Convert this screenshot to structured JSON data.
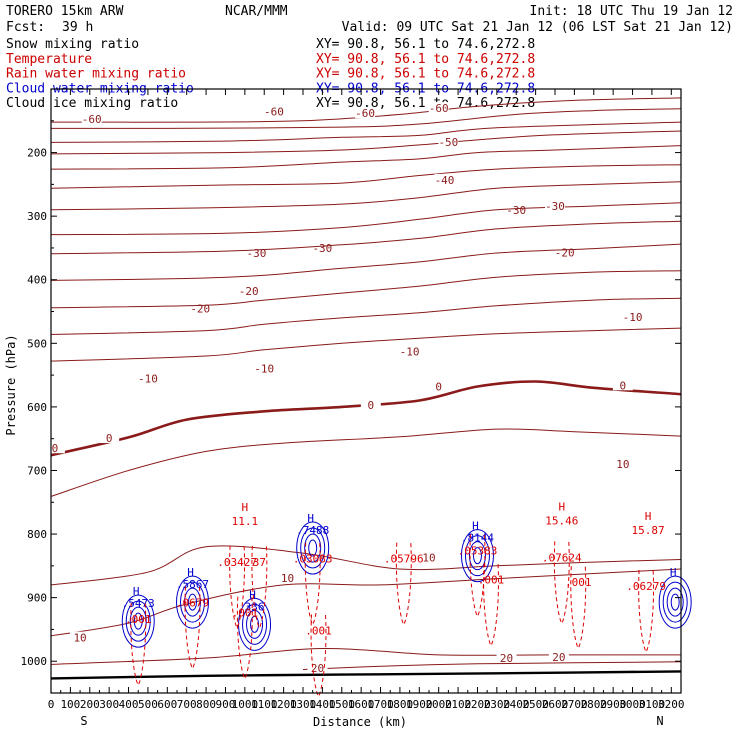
{
  "header": {
    "model": "TORERO  15km ARW",
    "org": "NCAR/MMM",
    "init": "Init: 18 UTC Thu 19 Jan 12",
    "fcst_label": "Fcst:",
    "fcst_value": "39 h",
    "valid": "Valid: 09 UTC Sat 21 Jan 12 (06 LST Sat 21 Jan 12)"
  },
  "legend": [
    {
      "label": "Snow mixing ratio",
      "xy": "XY=  90.8, 56.1 to  74.6,272.8",
      "color": "#000000"
    },
    {
      "label": "Temperature",
      "xy": "XY=  90.8, 56.1 to  74.6,272.8",
      "color": "#cc0000"
    },
    {
      "label": "Rain water mixing ratio",
      "xy": "XY=  90.8, 56.1 to  74.6,272.8",
      "color": "#cc0000"
    },
    {
      "label": "Cloud water mixing ratio",
      "xy": "XY=  90.8, 56.1 to  74.6,272.8",
      "color": "#0000cc"
    },
    {
      "label": "Cloud ice mixing ratio",
      "xy": "XY=  90.8, 56.1 to  74.6,272.8",
      "color": "#000000"
    }
  ],
  "chart_data": {
    "type": "line",
    "title": "",
    "xlabel": "Distance (km)",
    "ylabel": "Pressure (hPa)",
    "xlim": [
      0,
      3250
    ],
    "ylim": [
      1050,
      100
    ],
    "xticks": [
      0,
      100,
      200,
      300,
      400,
      500,
      600,
      700,
      800,
      900,
      1000,
      1100,
      1200,
      1300,
      1400,
      1500,
      1600,
      1700,
      1800,
      1900,
      2000,
      2100,
      2200,
      2300,
      2400,
      2500,
      2600,
      2700,
      2800,
      2900,
      3000,
      3100,
      3200
    ],
    "yticks": [
      200,
      300,
      400,
      500,
      600,
      700,
      800,
      900,
      1000
    ],
    "x_end_labels": {
      "left": "S",
      "right": "N"
    },
    "temperature_contours": [
      {
        "label": "-60",
        "points": [
          [
            0,
            152
          ],
          [
            700,
            152
          ],
          [
            1300,
            150
          ],
          [
            1800,
            140
          ],
          [
            2200,
            127
          ],
          [
            2700,
            118
          ],
          [
            3250,
            114
          ]
        ],
        "labels": [
          [
            1150,
            135
          ],
          [
            2000,
            130
          ]
        ]
      },
      {
        "label": "-60",
        "points": [
          [
            0,
            162
          ],
          [
            600,
            162
          ],
          [
            1500,
            160
          ],
          [
            1900,
            155
          ],
          [
            2400,
            140
          ],
          [
            2800,
            134
          ],
          [
            3250,
            131
          ]
        ],
        "labels": [
          [
            210,
            147
          ],
          [
            1620,
            138
          ]
        ]
      },
      {
        "label": "-60",
        "points": [
          [
            0,
            184
          ],
          [
            900,
            182
          ],
          [
            1500,
            176
          ],
          [
            1900,
            173
          ],
          [
            2300,
            161
          ],
          [
            3250,
            152
          ]
        ],
        "labels": []
      },
      {
        "label": "-50",
        "points": [
          [
            0,
            202
          ],
          [
            900,
            200
          ],
          [
            1500,
            196
          ],
          [
            1900,
            188
          ],
          [
            2200,
            180
          ],
          [
            2600,
            172
          ],
          [
            3250,
            166
          ]
        ],
        "labels": [
          [
            2050,
            183
          ]
        ]
      },
      {
        "label": "-50",
        "points": [
          [
            0,
            226
          ],
          [
            900,
            224
          ],
          [
            1500,
            215
          ],
          [
            1900,
            210
          ],
          [
            2200,
            200
          ],
          [
            2600,
            196
          ],
          [
            3250,
            189
          ]
        ],
        "labels": []
      },
      {
        "label": "-40",
        "points": [
          [
            0,
            256
          ],
          [
            900,
            251
          ],
          [
            1500,
            248
          ],
          [
            1900,
            236
          ],
          [
            2300,
            226
          ],
          [
            2800,
            221
          ],
          [
            3250,
            219
          ]
        ],
        "labels": [
          [
            2030,
            243
          ]
        ]
      },
      {
        "label": "-30",
        "points": [
          [
            0,
            290
          ],
          [
            800,
            287
          ],
          [
            1500,
            281
          ],
          [
            1900,
            271
          ],
          [
            2300,
            256
          ],
          [
            2800,
            250
          ],
          [
            3250,
            246
          ]
        ],
        "labels": [
          [
            2400,
            290
          ]
        ]
      },
      {
        "label": "-30",
        "points": [
          [
            0,
            329
          ],
          [
            900,
            327
          ],
          [
            1500,
            318
          ],
          [
            1900,
            305
          ],
          [
            2300,
            290
          ],
          [
            2800,
            284
          ],
          [
            3250,
            279
          ]
        ],
        "labels": [
          [
            1060,
            358
          ],
          [
            1400,
            350
          ],
          [
            2600,
            284
          ]
        ]
      },
      {
        "label": "-20",
        "points": [
          [
            0,
            359
          ],
          [
            900,
            355
          ],
          [
            1500,
            345
          ],
          [
            1900,
            335
          ],
          [
            2300,
            320
          ],
          [
            2800,
            312
          ],
          [
            3250,
            308
          ]
        ],
        "labels": [
          [
            2650,
            357
          ]
        ]
      },
      {
        "label": "-20",
        "points": [
          [
            0,
            401
          ],
          [
            700,
            398
          ],
          [
            1100,
            393
          ],
          [
            1500,
            382
          ],
          [
            1900,
            372
          ],
          [
            2300,
            358
          ],
          [
            2800,
            351
          ],
          [
            3250,
            344
          ]
        ],
        "labels": [
          [
            770,
            445
          ],
          [
            1020,
            418
          ]
        ]
      },
      {
        "label": "-10",
        "points": [
          [
            0,
            444
          ],
          [
            800,
            440
          ],
          [
            1100,
            432
          ],
          [
            1500,
            421
          ],
          [
            1900,
            410
          ],
          [
            2300,
            396
          ],
          [
            2800,
            388
          ],
          [
            3250,
            386
          ]
        ],
        "labels": [
          [
            3000,
            459
          ]
        ]
      },
      {
        "label": "-10",
        "points": [
          [
            0,
            486
          ],
          [
            800,
            480
          ],
          [
            1100,
            470
          ],
          [
            1500,
            460
          ],
          [
            1900,
            452
          ],
          [
            2300,
            441
          ],
          [
            2800,
            432
          ],
          [
            3250,
            429
          ]
        ],
        "labels": [
          [
            1850,
            513
          ],
          [
            1100,
            540
          ]
        ]
      },
      {
        "label": "-10",
        "points": [
          [
            0,
            528
          ],
          [
            800,
            520
          ],
          [
            1100,
            510
          ],
          [
            1500,
            500
          ],
          [
            1900,
            492
          ],
          [
            2300,
            485
          ],
          [
            2800,
            480
          ],
          [
            3250,
            476
          ]
        ],
        "labels": [
          [
            500,
            555
          ]
        ]
      },
      {
        "label": "0",
        "points": [
          [
            0,
            676
          ],
          [
            400,
            648
          ],
          [
            700,
            620
          ],
          [
            1100,
            607
          ],
          [
            1500,
            600
          ],
          [
            1900,
            590
          ],
          [
            2200,
            568
          ],
          [
            2500,
            560
          ],
          [
            2800,
            570
          ],
          [
            3250,
            580
          ]
        ],
        "labels": [
          [
            20,
            665
          ],
          [
            300,
            649
          ],
          [
            1650,
            597
          ],
          [
            2000,
            568
          ],
          [
            2950,
            566
          ]
        ]
      },
      {
        "label": "10",
        "points": [
          [
            0,
            741
          ],
          [
            400,
            700
          ],
          [
            800,
            670
          ],
          [
            1200,
            657
          ],
          [
            1800,
            647
          ],
          [
            2300,
            635
          ],
          [
            2700,
            639
          ],
          [
            3250,
            646
          ]
        ],
        "labels": [
          [
            2950,
            690
          ]
        ]
      },
      {
        "label": "10",
        "points": [
          [
            0,
            880
          ],
          [
            500,
            860
          ],
          [
            800,
            820
          ],
          [
            1300,
            830
          ],
          [
            1800,
            855
          ],
          [
            2300,
            850
          ],
          [
            2700,
            845
          ],
          [
            3250,
            840
          ]
        ],
        "labels": [
          [
            1220,
            869
          ],
          [
            1950,
            837
          ]
        ]
      },
      {
        "label": "10",
        "points": [
          [
            0,
            960
          ],
          [
            400,
            940
          ],
          [
            700,
            910
          ],
          [
            1200,
            880
          ],
          [
            1700,
            880
          ],
          [
            2300,
            870
          ],
          [
            2800,
            862
          ],
          [
            3250,
            855
          ]
        ],
        "labels": [
          [
            150,
            963
          ]
        ]
      },
      {
        "label": "20",
        "points": [
          [
            0,
            1005
          ],
          [
            800,
            995
          ],
          [
            1400,
            980
          ],
          [
            2000,
            990
          ],
          [
            2600,
            990
          ],
          [
            3250,
            990
          ]
        ],
        "labels": [
          [
            2350,
            995
          ],
          [
            2620,
            993
          ]
        ]
      },
      {
        "label": "20",
        "points": [
          [
            1300,
            1013
          ],
          [
            1700,
            1008
          ],
          [
            2200,
            1004
          ],
          [
            3250,
            1001
          ]
        ],
        "labels": [
          [
            1375,
            1011
          ]
        ]
      }
    ],
    "freezing_level_hPa": [
      [
        0,
        676
      ],
      [
        400,
        648
      ],
      [
        700,
        620
      ],
      [
        1100,
        607
      ],
      [
        1500,
        600
      ],
      [
        1900,
        590
      ],
      [
        2200,
        568
      ],
      [
        2500,
        560
      ],
      [
        2800,
        570
      ],
      [
        3250,
        580
      ]
    ],
    "surface_hPa": [
      [
        0,
        1027
      ],
      [
        800,
        1023
      ],
      [
        1500,
        1021
      ],
      [
        2300,
        1019
      ],
      [
        3250,
        1016
      ]
    ],
    "cloud_water_maxima": [
      {
        "x": 450,
        "p": 915,
        "label": ".5473"
      },
      {
        "x": 730,
        "p": 885,
        "label": ".5867"
      },
      {
        "x": 1050,
        "p": 920,
        "label": "336"
      },
      {
        "x": 1350,
        "p": 800,
        "label": ".7488"
      },
      {
        "x": 2200,
        "p": 812,
        "label": ".8144"
      },
      {
        "x": 3220,
        "p": 885,
        "label": ""
      }
    ],
    "rain_water_maxima": [
      {
        "x": 450,
        "p": 940,
        "label": ".001"
      },
      {
        "x": 730,
        "p": 914,
        "label": ".0679"
      },
      {
        "x": 960,
        "p": 850,
        "label": ".03427"
      },
      {
        "x": 1075,
        "p": 850,
        "label": "37"
      },
      {
        "x": 1000,
        "p": 930,
        "label": ".001"
      },
      {
        "x": 1350,
        "p": 845,
        "label": ".03083"
      },
      {
        "x": 1380,
        "p": 958,
        "label": ".001"
      },
      {
        "x": 1820,
        "p": 845,
        "label": ".05796"
      },
      {
        "x": 2200,
        "p": 832,
        "label": ".05383"
      },
      {
        "x": 2270,
        "p": 878,
        "label": ".001"
      },
      {
        "x": 2635,
        "p": 843,
        "label": ".07624"
      },
      {
        "x": 2720,
        "p": 882,
        "label": ".001"
      },
      {
        "x": 3070,
        "p": 888,
        "label": ".06279"
      }
    ],
    "snow_maxima": [
      {
        "x": 1000,
        "p": 786,
        "label": "11.1"
      },
      {
        "x": 2635,
        "p": 785,
        "label": "15.46"
      },
      {
        "x": 3080,
        "p": 800,
        "label": "15.87"
      }
    ],
    "colors": {
      "temperature": "#8b1a1a",
      "rain": "#dd0000",
      "cloud_water": "#0000cc",
      "snow": "#000000",
      "axes": "#000000"
    }
  }
}
